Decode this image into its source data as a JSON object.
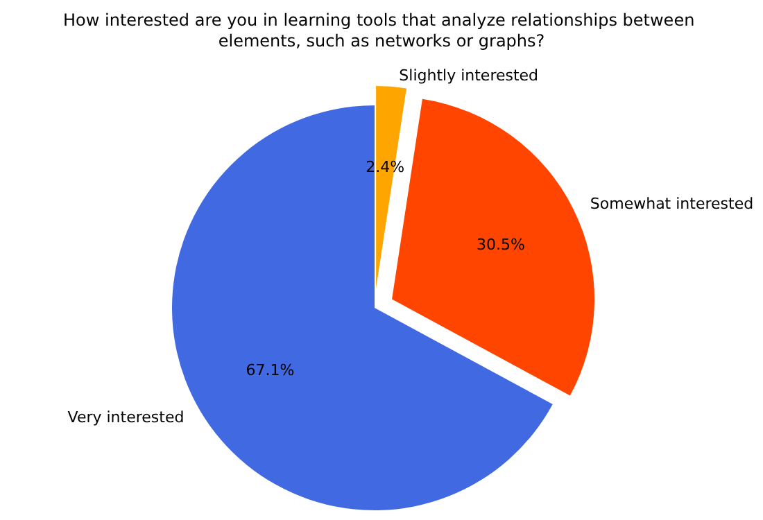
{
  "chart_data": {
    "type": "pie",
    "title": "How interested are you in learning tools that analyze relationships between elements, such as networks or graphs?",
    "categories": [
      "Very interested",
      "Somewhat interested",
      "Slightly interested"
    ],
    "values": [
      67.1,
      30.5,
      2.4
    ],
    "colors": [
      "#4169e1",
      "#ff4500",
      "#ffa500"
    ],
    "value_labels": [
      "67.1%",
      "30.5%",
      "2.4%"
    ]
  }
}
